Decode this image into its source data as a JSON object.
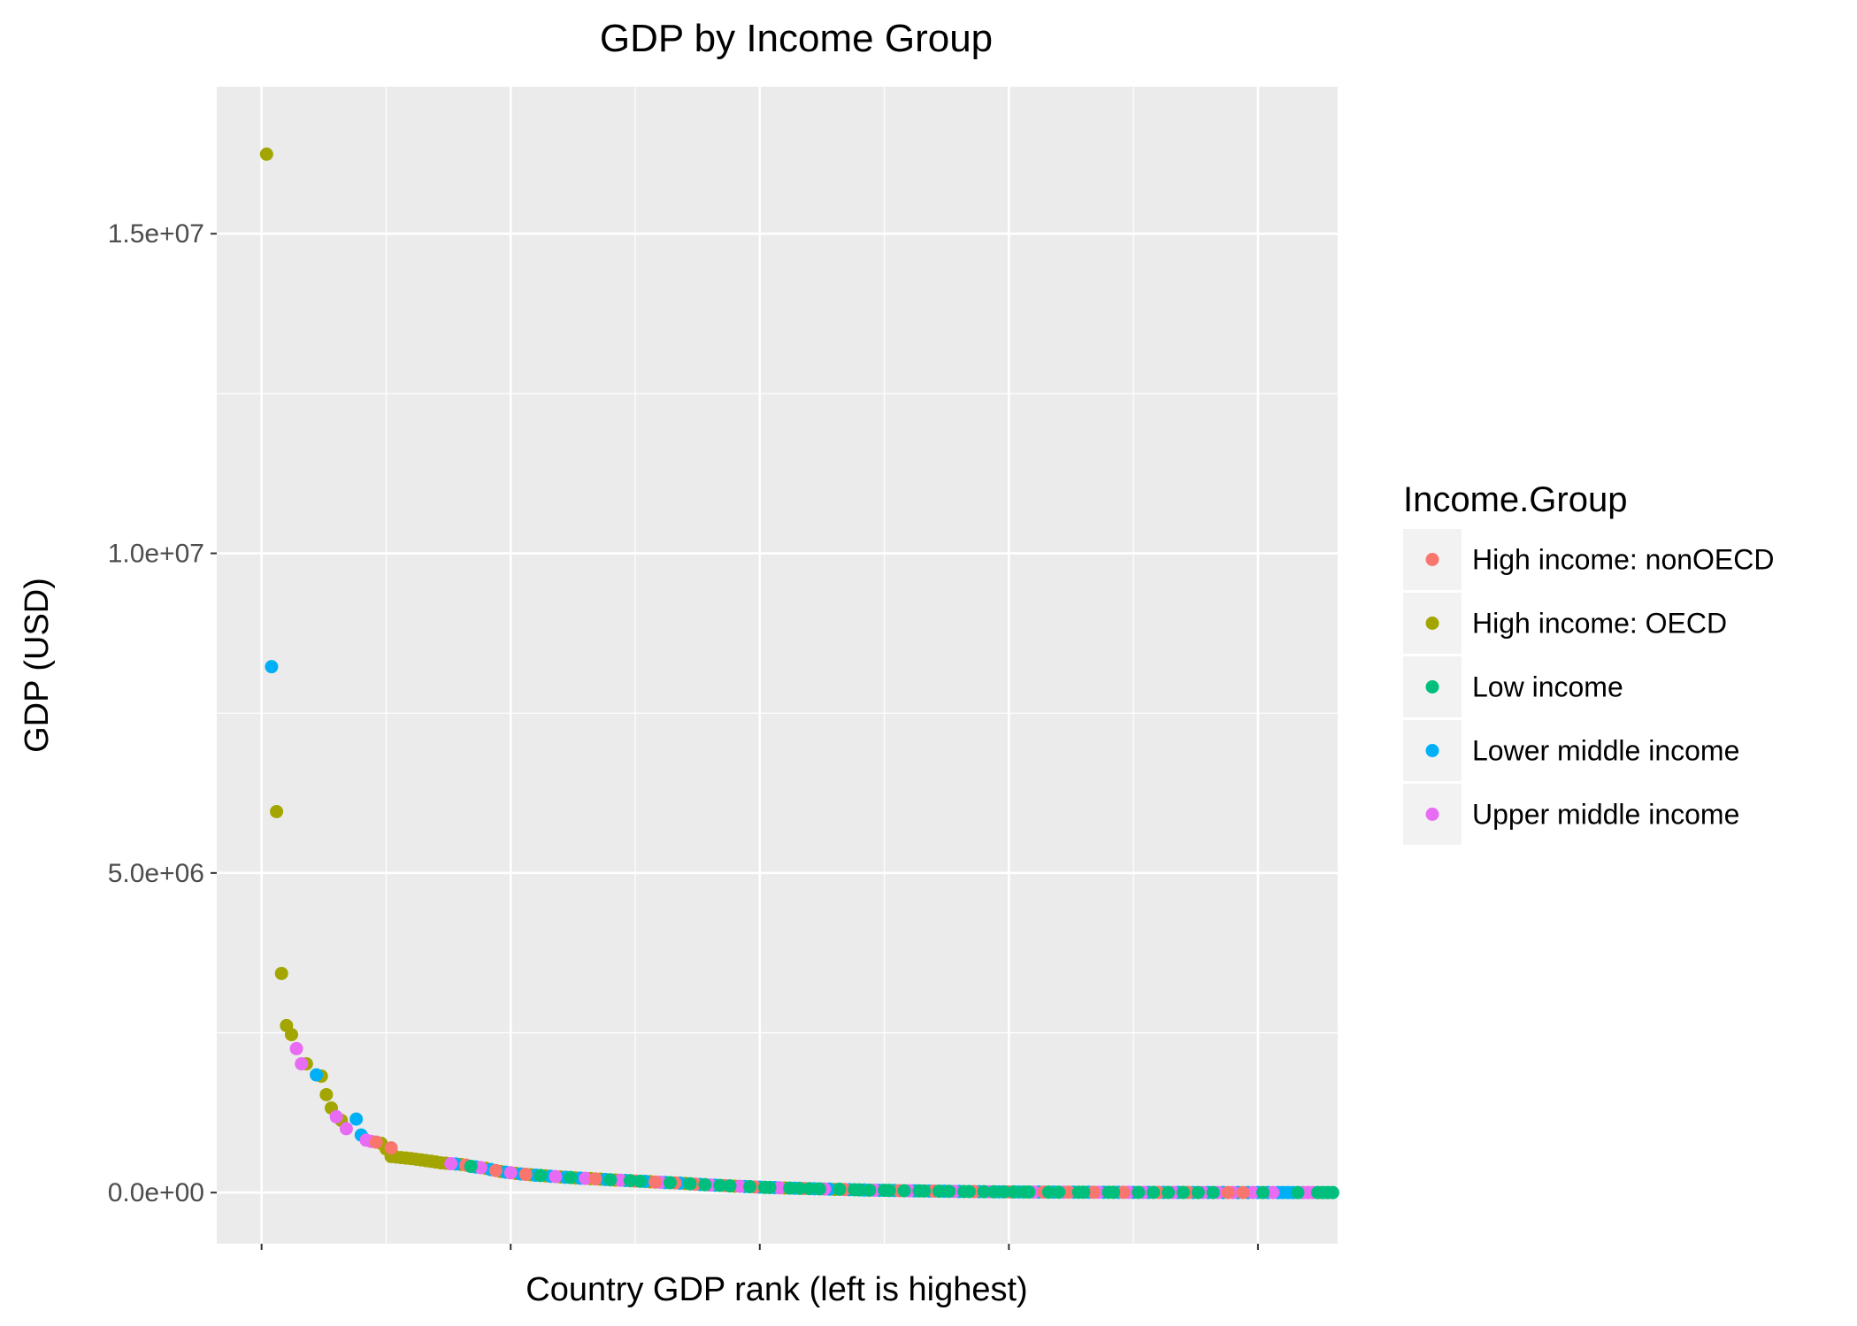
{
  "chart_data": {
    "type": "scatter",
    "title": "GDP by Income Group",
    "xlabel": "Country GDP rank (left is highest)",
    "ylabel": "GDP (USD)",
    "xlim": [
      -9,
      216
    ],
    "ylim": [
      -800000,
      17300000
    ],
    "y_ticks": [
      0,
      5000000,
      10000000,
      15000000
    ],
    "y_tick_labels": [
      "0.0e+00",
      "5.0e+06",
      "1.0e+07",
      "1.5e+07"
    ],
    "grid": true,
    "legend": {
      "title": "Income.Group",
      "position": "right",
      "entries": [
        {
          "name": "High income: nonOECD",
          "color": "#F8766D"
        },
        {
          "name": "High income: OECD",
          "color": "#A3A500"
        },
        {
          "name": "Low income",
          "color": "#00BF7D"
        },
        {
          "name": "Lower middle income",
          "color": "#00B0F6"
        },
        {
          "name": "Upper middle income",
          "color": "#E76BF3"
        }
      ]
    },
    "series": [
      {
        "name": "High income: OECD",
        "color": "#A3A500",
        "points": [
          [
            1,
            16244600
          ],
          [
            3,
            5960180
          ],
          [
            4,
            3428131
          ],
          [
            5,
            2612878
          ],
          [
            6,
            2471784
          ],
          [
            9,
            2014670
          ],
          [
            12,
            1821424
          ],
          [
            13,
            1532408
          ],
          [
            14,
            1322965
          ],
          [
            16,
            1129005
          ],
          [
            24,
            770555
          ],
          [
            25,
            683716
          ],
          [
            26,
            564000
          ],
          [
            27,
            556000
          ],
          [
            28,
            548000
          ],
          [
            29,
            540000
          ],
          [
            30,
            532000
          ],
          [
            31,
            522000
          ],
          [
            32,
            512000
          ],
          [
            33,
            500000
          ],
          [
            34,
            490000
          ],
          [
            35,
            478000
          ],
          [
            36,
            465000
          ],
          [
            37,
            460000
          ],
          [
            40,
            441000
          ],
          [
            45,
            380000
          ],
          [
            48,
            330000
          ],
          [
            51,
            300000
          ],
          [
            54,
            280000
          ],
          [
            57,
            262000
          ],
          [
            60,
            245000
          ],
          [
            63,
            230000
          ],
          [
            66,
            218000
          ],
          [
            68,
            210000
          ],
          [
            71,
            196000
          ],
          [
            78,
            170000
          ],
          [
            85,
            143000
          ],
          [
            95,
            100000
          ],
          [
            105,
            72000
          ],
          [
            115,
            50000
          ]
        ]
      },
      {
        "name": "Lower middle income",
        "color": "#00B0F6",
        "points": [
          [
            2,
            8227103
          ],
          [
            11,
            1841710
          ],
          [
            19,
            1150000
          ],
          [
            20,
            900000
          ],
          [
            39,
            448000
          ],
          [
            43,
            400000
          ],
          [
            46,
            360000
          ],
          [
            49,
            320000
          ],
          [
            52,
            292000
          ],
          [
            55,
            272000
          ],
          [
            58,
            256000
          ],
          [
            61,
            240000
          ],
          [
            64,
            225000
          ],
          [
            69,
            205000
          ],
          [
            73,
            190000
          ],
          [
            77,
            175000
          ],
          [
            81,
            158000
          ],
          [
            84,
            148000
          ],
          [
            88,
            128000
          ],
          [
            91,
            115000
          ],
          [
            97,
            95000
          ],
          [
            100,
            85000
          ],
          [
            103,
            78000
          ],
          [
            107,
            68000
          ],
          [
            111,
            60000
          ],
          [
            114,
            54000
          ],
          [
            118,
            46000
          ],
          [
            121,
            40000
          ],
          [
            124,
            36000
          ],
          [
            127,
            32000
          ],
          [
            131,
            27000
          ],
          [
            134,
            24000
          ],
          [
            137,
            21000
          ],
          [
            140,
            18000
          ],
          [
            144,
            15000
          ],
          [
            148,
            12000
          ],
          [
            152,
            10000
          ],
          [
            156,
            8000
          ],
          [
            159,
            7000
          ],
          [
            163,
            6000
          ],
          [
            166,
            5200
          ],
          [
            169,
            4500
          ],
          [
            172,
            3900
          ],
          [
            175,
            3300
          ],
          [
            178,
            2800
          ],
          [
            181,
            2400
          ],
          [
            184,
            2000
          ],
          [
            187,
            1700
          ],
          [
            190,
            1500
          ],
          [
            193,
            1300
          ],
          [
            196,
            1100
          ],
          [
            198,
            1000
          ],
          [
            200,
            900
          ],
          [
            202,
            800
          ],
          [
            204,
            700
          ],
          [
            205,
            600
          ],
          [
            206,
            500
          ],
          [
            207,
            400
          ]
        ]
      },
      {
        "name": "Upper middle income",
        "color": "#E76BF3",
        "points": [
          [
            7,
            2252664
          ],
          [
            8,
            2014670
          ],
          [
            15,
            1186000
          ],
          [
            17,
            1000000
          ],
          [
            21,
            820000
          ],
          [
            22,
            800000
          ],
          [
            38,
            452000
          ],
          [
            44,
            390000
          ],
          [
            50,
            310000
          ],
          [
            59,
            250000
          ],
          [
            65,
            222000
          ],
          [
            72,
            193000
          ],
          [
            80,
            162000
          ],
          [
            90,
            118000
          ],
          [
            96,
            98000
          ],
          [
            104,
            75000
          ],
          [
            113,
            56000
          ],
          [
            123,
            37000
          ],
          [
            130,
            28000
          ],
          [
            139,
            19000
          ],
          [
            146,
            13500
          ],
          [
            155,
            8500
          ],
          [
            161,
            6500
          ],
          [
            168,
            4700
          ],
          [
            174,
            3500
          ],
          [
            177,
            3000
          ],
          [
            183,
            2100
          ],
          [
            189,
            1600
          ],
          [
            192,
            1400
          ],
          [
            195,
            1150
          ],
          [
            199,
            950
          ],
          [
            203,
            750
          ],
          [
            209,
            300
          ],
          [
            210,
            250
          ],
          [
            211,
            200
          ]
        ]
      },
      {
        "name": "High income: nonOECD",
        "color": "#F8766D",
        "points": [
          [
            23,
            790000
          ],
          [
            26,
            700000
          ],
          [
            41,
            430000
          ],
          [
            47,
            345000
          ],
          [
            53,
            286000
          ],
          [
            67,
            214000
          ],
          [
            75,
            180000
          ],
          [
            79,
            165000
          ],
          [
            83,
            152000
          ],
          [
            87,
            133000
          ],
          [
            93,
            108000
          ],
          [
            99,
            88000
          ],
          [
            109,
            64000
          ],
          [
            117,
            48000
          ],
          [
            128,
            31000
          ],
          [
            135,
            23000
          ],
          [
            143,
            16000
          ],
          [
            150,
            11000
          ],
          [
            157,
            7800
          ],
          [
            162,
            6200
          ],
          [
            167,
            5000
          ],
          [
            173,
            3700
          ],
          [
            180,
            2600
          ],
          [
            186,
            1800
          ],
          [
            194,
            1200
          ],
          [
            197,
            1050
          ]
        ]
      },
      {
        "name": "Low income",
        "color": "#00BF7D",
        "points": [
          [
            42,
            410000
          ],
          [
            56,
            268000
          ],
          [
            62,
            236000
          ],
          [
            70,
            200000
          ],
          [
            74,
            186000
          ],
          [
            76,
            178000
          ],
          [
            82,
            155000
          ],
          [
            86,
            138000
          ],
          [
            89,
            123000
          ],
          [
            92,
            112000
          ],
          [
            94,
            104000
          ],
          [
            98,
            92000
          ],
          [
            101,
            82000
          ],
          [
            102,
            80000
          ],
          [
            106,
            70000
          ],
          [
            108,
            66000
          ],
          [
            110,
            62000
          ],
          [
            112,
            58000
          ],
          [
            116,
            52000
          ],
          [
            119,
            44000
          ],
          [
            120,
            42000
          ],
          [
            122,
            38000
          ],
          [
            125,
            35000
          ],
          [
            126,
            33000
          ],
          [
            129,
            29000
          ],
          [
            132,
            26000
          ],
          [
            133,
            25000
          ],
          [
            136,
            22000
          ],
          [
            138,
            20000
          ],
          [
            141,
            17000
          ],
          [
            142,
            16500
          ],
          [
            145,
            14000
          ],
          [
            147,
            12500
          ],
          [
            149,
            11500
          ],
          [
            151,
            10500
          ],
          [
            153,
            9500
          ],
          [
            154,
            9000
          ],
          [
            158,
            7400
          ],
          [
            160,
            6800
          ],
          [
            164,
            5800
          ],
          [
            165,
            5500
          ],
          [
            170,
            4300
          ],
          [
            171,
            4100
          ],
          [
            176,
            3200
          ],
          [
            179,
            2700
          ],
          [
            182,
            2300
          ],
          [
            185,
            1900
          ],
          [
            188,
            1650
          ],
          [
            191,
            1450
          ],
          [
            201,
            850
          ],
          [
            208,
            350
          ],
          [
            212,
            150
          ],
          [
            213,
            100
          ],
          [
            214,
            80
          ],
          [
            215,
            60
          ]
        ]
      }
    ]
  }
}
